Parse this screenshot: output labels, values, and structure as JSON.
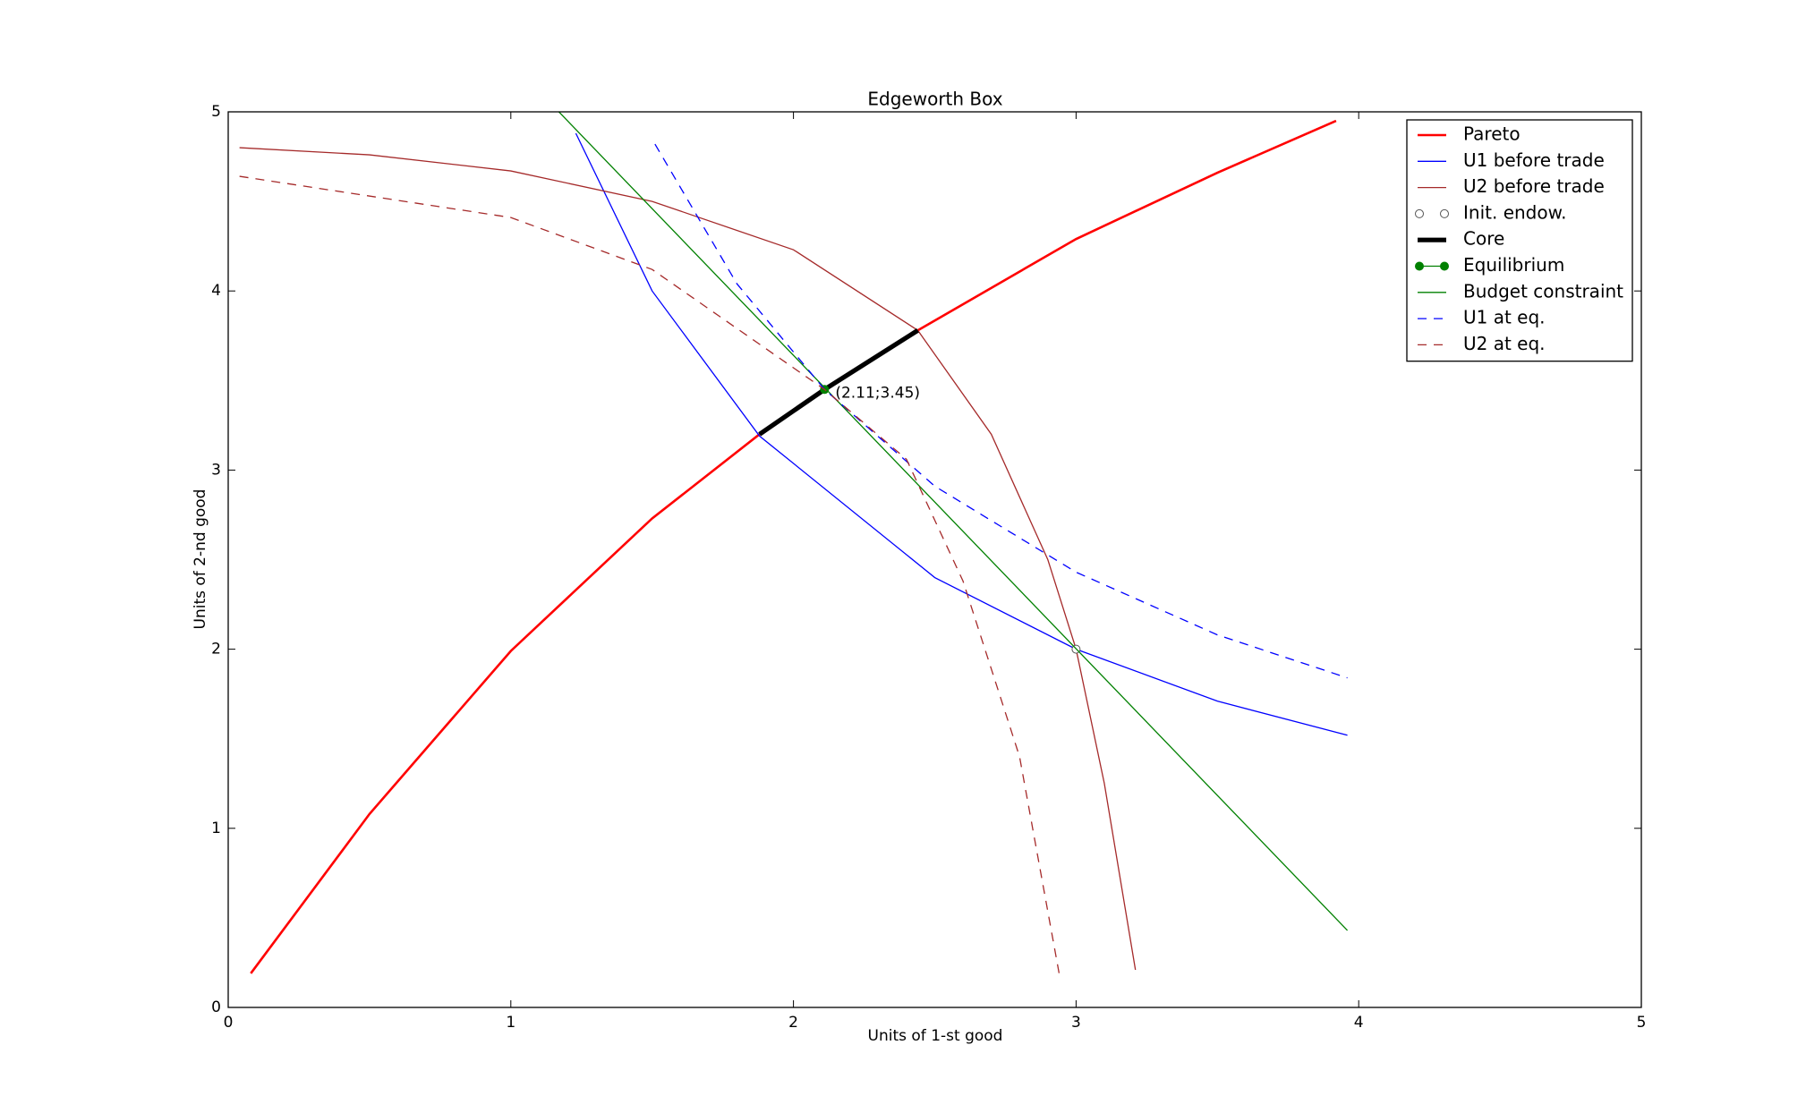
{
  "chart_data": {
    "type": "line",
    "title": "Edgeworth Box",
    "x_label": "Units of 1-st good",
    "y_label": "Units of 2-nd good",
    "xlim": [
      0,
      5
    ],
    "ylim": [
      0,
      5
    ],
    "xticks": [
      0,
      1,
      2,
      3,
      4,
      5
    ],
    "yticks": [
      0,
      1,
      2,
      3,
      4,
      5
    ],
    "grid": false,
    "legend": "upper right",
    "series": [
      {
        "name": "Pareto",
        "color": "#ff0000",
        "width": 2,
        "dash": "solid",
        "marker": "none",
        "x": [
          0.08,
          0.5,
          1.0,
          1.5,
          1.88,
          2.11,
          2.44,
          3.0,
          3.5,
          3.92
        ],
        "values": [
          0.19,
          1.08,
          1.99,
          2.73,
          3.2,
          3.45,
          3.78,
          4.29,
          4.66,
          4.95
        ]
      },
      {
        "name": "U1 before trade",
        "color": "#0000ff",
        "width": 1,
        "dash": "solid",
        "marker": "none",
        "x": [
          1.23,
          1.5,
          1.88,
          2.5,
          3.0,
          3.5,
          3.96
        ],
        "values": [
          4.88,
          4.0,
          3.19,
          2.4,
          2.0,
          1.71,
          1.52
        ]
      },
      {
        "name": "U2 before trade",
        "color": "#a52a2a",
        "width": 1,
        "dash": "solid",
        "marker": "none",
        "x": [
          0.04,
          0.5,
          1.0,
          1.5,
          2.0,
          2.44,
          2.7,
          2.9,
          3.0,
          3.1,
          3.21
        ],
        "values": [
          4.8,
          4.76,
          4.67,
          4.5,
          4.23,
          3.78,
          3.2,
          2.5,
          2.0,
          1.25,
          0.21
        ]
      },
      {
        "name": "Init. endow.",
        "color": "#ffffff",
        "width": 0,
        "dash": "none",
        "marker": "circle",
        "x": [
          3.0
        ],
        "values": [
          2.0
        ]
      },
      {
        "name": "Core",
        "color": "#000000",
        "width": 4,
        "dash": "solid",
        "marker": "none",
        "x": [
          1.88,
          2.11,
          2.44
        ],
        "values": [
          3.2,
          3.45,
          3.78
        ]
      },
      {
        "name": "Equilibrium",
        "color": "#008000",
        "width": 1,
        "dash": "solid",
        "marker": "circle",
        "x": [
          2.11
        ],
        "values": [
          3.45
        ]
      },
      {
        "name": "Budget constraint",
        "color": "#008000",
        "width": 1,
        "dash": "solid",
        "marker": "none",
        "x": [
          1.17,
          3.96
        ],
        "values": [
          5.0,
          0.43
        ]
      },
      {
        "name": "U1 at eq.",
        "color": "#0000ff",
        "width": 1,
        "dash": "dashed",
        "marker": "none",
        "x": [
          1.51,
          1.8,
          2.11,
          2.5,
          3.0,
          3.5,
          3.96
        ],
        "values": [
          4.82,
          4.04,
          3.45,
          2.91,
          2.43,
          2.08,
          1.84
        ]
      },
      {
        "name": "U2 at eq.",
        "color": "#a52a2a",
        "width": 1,
        "dash": "dashed",
        "marker": "none",
        "x": [
          0.04,
          1.0,
          1.5,
          2.11,
          2.4,
          2.6,
          2.8,
          2.94
        ],
        "values": [
          4.64,
          4.41,
          4.12,
          3.45,
          3.06,
          2.38,
          1.4,
          0.19
        ]
      }
    ],
    "annotations": [
      {
        "text": "(2.11;3.45)",
        "x": 2.11,
        "y": 3.45
      }
    ]
  }
}
